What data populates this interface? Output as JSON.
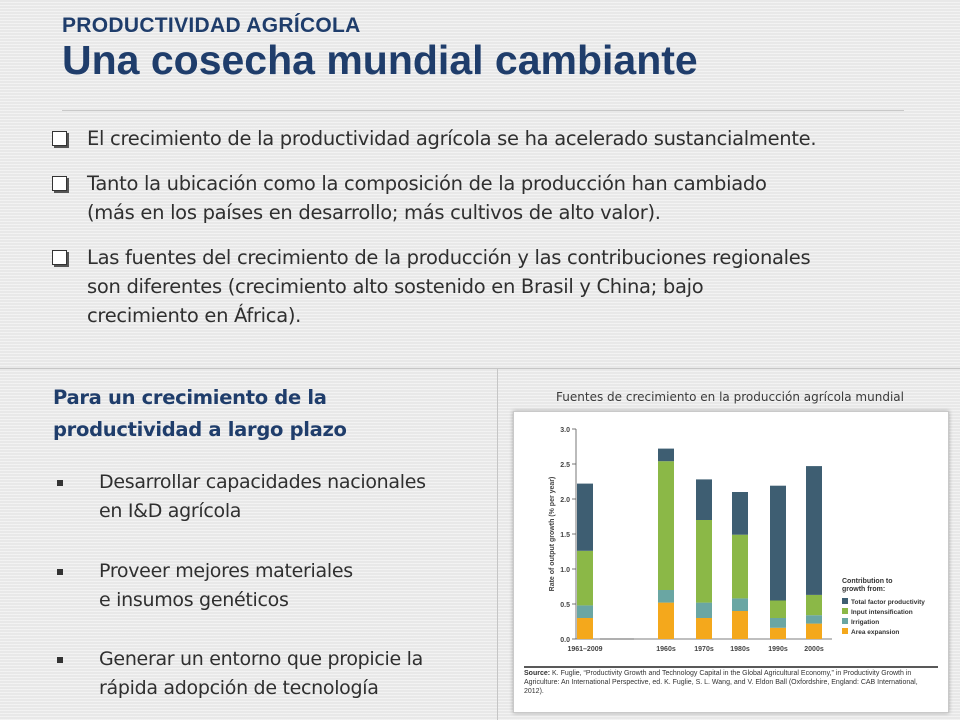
{
  "header": {
    "kicker": "PRODUCTIVIDAD AGRÍCOLA",
    "title": "Una cosecha mundial cambiante"
  },
  "bullets": [
    {
      "line1": "El crecimiento de la productividad agrícola se ha acelerado sustancialmente."
    },
    {
      "line1": "Tanto la ubicación como la composición de la producción han cambiado",
      "line2": "(más en los países en desarrollo; más cultivos de alto valor)."
    },
    {
      "line1": "Las fuentes del crecimiento de la producción y las contribuciones regionales",
      "line2": "son diferentes (crecimiento alto sostenido en Brasil y China; bajo",
      "line3": "crecimiento en África)."
    }
  ],
  "left": {
    "heading_line1": "Para  un crecimiento de la",
    "heading_line2": "productividad a largo plazo",
    "items": [
      {
        "line1": "Desarrollar capacidades nacionales",
        "line2": "en I&D agrícola"
      },
      {
        "line1": "Proveer mejores materiales",
        "line2": "e insumos genéticos"
      },
      {
        "line1": "Generar un entorno que propicie la",
        "line2": "rápida adopción de tecnología"
      }
    ]
  },
  "chart_caption": "Fuentes de crecimiento en la producción agrícola mundial",
  "chart_data": {
    "type": "bar",
    "stacked": true,
    "categories": [
      "1961–2009",
      "1960s",
      "1970s",
      "1980s",
      "1990s",
      "2000s"
    ],
    "ylabel": "Rate of output growth (% per year)",
    "ylim": [
      0,
      3.0
    ],
    "yticks": [
      "0.0",
      "0.5",
      "1.0",
      "1.5",
      "2.0",
      "2.5",
      "3.0"
    ],
    "legend_title_line1": "Contribution to",
    "legend_title_line2": "growth from:",
    "series": [
      {
        "name": "Area expansion",
        "color": "#f4a81c",
        "values": [
          0.3,
          0.52,
          0.3,
          0.4,
          0.16,
          0.22
        ]
      },
      {
        "name": "Irrigation",
        "color": "#6aa6a3",
        "values": [
          0.18,
          0.18,
          0.22,
          0.18,
          0.14,
          0.12
        ]
      },
      {
        "name": "Input intensification",
        "color": "#8bb847",
        "values": [
          0.78,
          1.84,
          1.18,
          0.91,
          0.25,
          0.29
        ]
      },
      {
        "name": "Total factor productivity",
        "color": "#3e5e72",
        "values": [
          0.96,
          0.18,
          0.58,
          0.61,
          1.64,
          1.84
        ]
      }
    ],
    "legend_order": [
      3,
      2,
      1,
      0
    ],
    "legend_position": "right",
    "source_bold": "Source:",
    "source_text": "K. Fuglie, “Productivity Growth and Technology Capital in the Global Agricultural Economy,” in Productivity Growth in Agriculture: An International Perspective, ed. K. Fuglie, S. L. Wang, and V. Eldon Ball (Oxfordshire, England: CAB International, 2012)."
  }
}
